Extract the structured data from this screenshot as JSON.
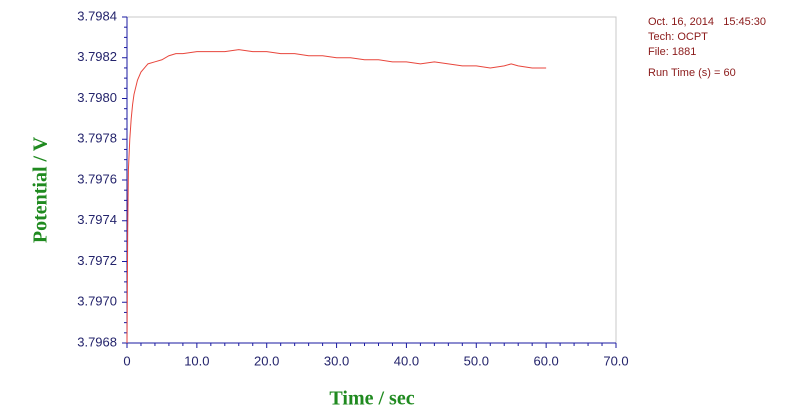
{
  "chart_data": {
    "type": "line",
    "xlabel": "Time / sec",
    "ylabel": "Potential / V",
    "annotations": [
      "Oct. 16, 2014   15:45:30",
      "Tech: OCPT",
      "File: 1881",
      "Run Time (s) = 60"
    ],
    "color": "#e8463c",
    "x": [
      0,
      0.1,
      0.2,
      0.4,
      0.6,
      0.8,
      1,
      1.5,
      2,
      2.5,
      3,
      4,
      5,
      6,
      7,
      8,
      10,
      12,
      14,
      16,
      18,
      20,
      22,
      24,
      26,
      28,
      30,
      32,
      34,
      36,
      38,
      40,
      42,
      44,
      46,
      48,
      50,
      52,
      54,
      55,
      56,
      58,
      60
    ],
    "values": [
      3.7968,
      3.79735,
      3.79765,
      3.7978,
      3.7979,
      3.79797,
      3.79802,
      3.79809,
      3.79813,
      3.79815,
      3.79817,
      3.79818,
      3.79819,
      3.79821,
      3.79822,
      3.79822,
      3.79823,
      3.79823,
      3.79823,
      3.79824,
      3.79823,
      3.79823,
      3.79822,
      3.79822,
      3.79821,
      3.79821,
      3.7982,
      3.7982,
      3.79819,
      3.79819,
      3.79818,
      3.79818,
      3.79817,
      3.79818,
      3.79817,
      3.79816,
      3.79816,
      3.79815,
      3.79816,
      3.79817,
      3.79816,
      3.79815,
      3.79815
    ],
    "xlim": [
      0,
      70
    ],
    "ylim": [
      3.7968,
      3.7984
    ],
    "xticks": [
      0,
      {
        "value": 10,
        "label": "10.0"
      },
      {
        "value": 20,
        "label": "20.0"
      },
      {
        "value": 30,
        "label": "30.0"
      },
      {
        "value": 40,
        "label": "40.0"
      },
      {
        "value": 50,
        "label": "50.0"
      },
      {
        "value": 60,
        "label": "60.0"
      },
      {
        "value": 70,
        "label": "70.0"
      }
    ],
    "yticks": [
      3.7968,
      {
        "value": 3.797,
        "label": "3.7970"
      },
      3.7972,
      3.7974,
      3.7976,
      3.7978,
      {
        "value": 3.798,
        "label": "3.7980"
      },
      3.7982,
      3.7984
    ]
  }
}
